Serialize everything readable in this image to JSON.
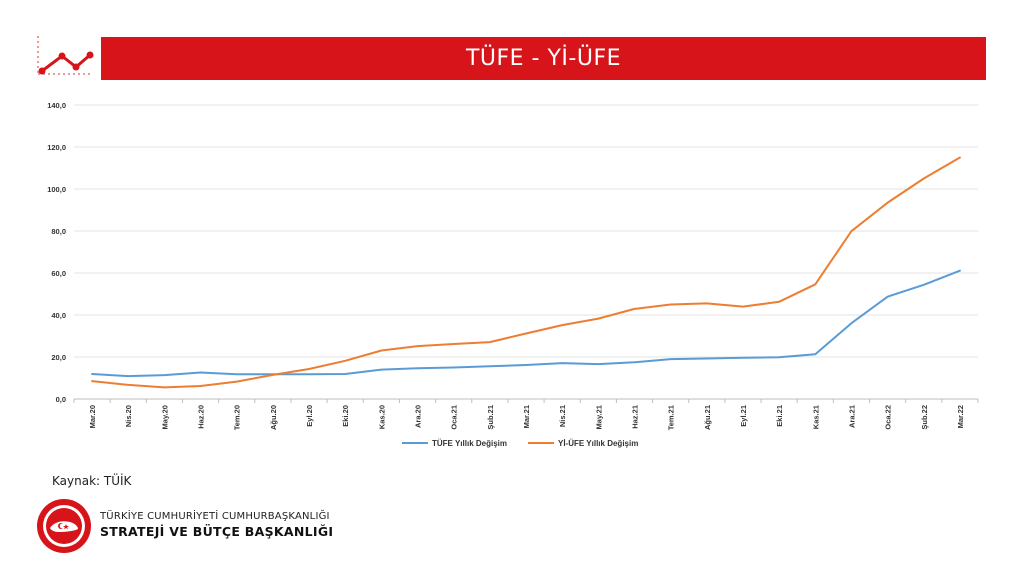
{
  "header": {
    "title": "TÜFE - Yİ-ÜFE",
    "accent_color": "#d7141a",
    "icon": "line-chart-icon"
  },
  "chart_data": {
    "type": "line",
    "title": "",
    "xlabel": "",
    "ylabel": "",
    "ylim": [
      0,
      140
    ],
    "yticks": [
      "0,0",
      "20,0",
      "40,0",
      "60,0",
      "80,0",
      "100,0",
      "120,0",
      "140,0"
    ],
    "ytick_values": [
      0,
      20,
      40,
      60,
      80,
      100,
      120,
      140
    ],
    "grid": true,
    "legend_position": "bottom",
    "categories": [
      "Mar.20",
      "Nis.20",
      "May.20",
      "Haz.20",
      "Tem.20",
      "Ağu.20",
      "Eyl.20",
      "Eki.20",
      "Kas.20",
      "Ara.20",
      "Oca.21",
      "Şub.21",
      "Mar.21",
      "Nis.21",
      "May.21",
      "Haz.21",
      "Tem.21",
      "Ağu.21",
      "Eyl.21",
      "Eki.21",
      "Kas.21",
      "Ara.21",
      "Oca.22",
      "Şub.22",
      "Mar.22"
    ],
    "series": [
      {
        "name": "TÜFE Yıllık Değişim",
        "color": "#5b9bd5",
        "values": [
          11.9,
          10.9,
          11.4,
          12.6,
          11.8,
          11.8,
          11.8,
          11.9,
          14.0,
          14.6,
          15.0,
          15.6,
          16.2,
          17.1,
          16.6,
          17.5,
          19.0,
          19.3,
          19.6,
          19.9,
          21.3,
          36.1,
          48.7,
          54.4,
          61.1
        ]
      },
      {
        "name": "Yİ-ÜFE Yıllık Değişim",
        "color": "#ed7d31",
        "values": [
          8.5,
          6.7,
          5.5,
          6.2,
          8.3,
          11.5,
          14.3,
          18.2,
          23.1,
          25.2,
          26.2,
          27.1,
          31.2,
          35.2,
          38.3,
          42.9,
          45.0,
          45.5,
          44.0,
          46.3,
          54.6,
          79.9,
          93.5,
          105.0,
          115.0
        ]
      }
    ]
  },
  "footer": {
    "source": "Kaynak: TÜİK",
    "org_line1": "TÜRKİYE CUMHURİYETİ CUMHURBAŞKANLIĞI",
    "org_line2": "STRATEJİ VE BÜTÇE BAŞKANLIĞI",
    "emblem_color": "#d7141a",
    "emblem_icon": "presidency-emblem-icon"
  }
}
